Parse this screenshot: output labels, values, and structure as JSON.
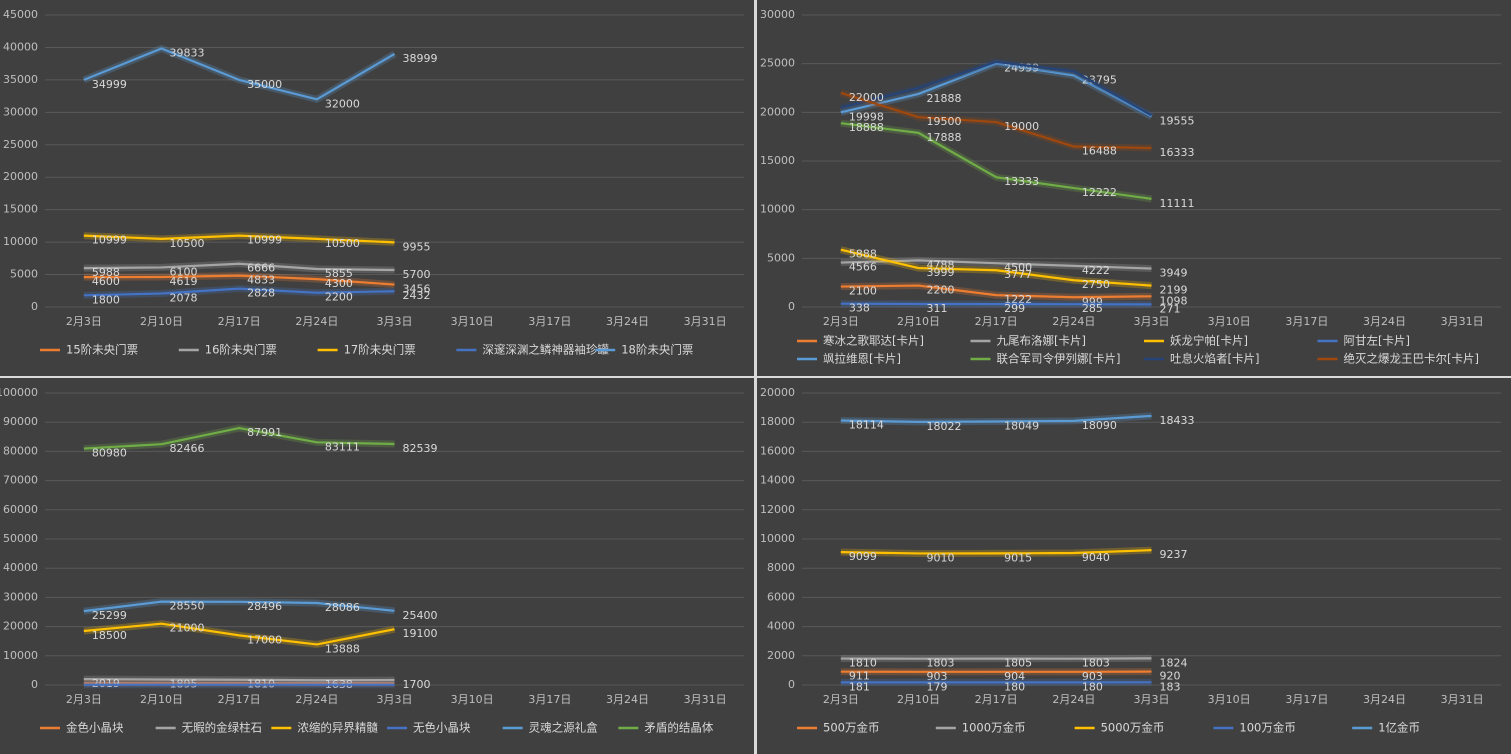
{
  "chart_data": [
    {
      "type": "line",
      "categories": [
        "2月3日",
        "2月10日",
        "2月17日",
        "2月24日",
        "3月3日",
        "3月10日",
        "3月17日",
        "3月24日",
        "3月31日"
      ],
      "ylim": [
        0,
        45000
      ],
      "yticks": [
        0,
        5000,
        10000,
        15000,
        20000,
        25000,
        30000,
        35000,
        40000,
        45000
      ],
      "grid": true,
      "legend": "bottom",
      "series": [
        {
          "name": "15阶未央门票",
          "color": "#ed7d31",
          "labels": true,
          "values": [
            4600,
            4619,
            4833,
            4300,
            3456,
            null,
            null,
            null,
            null
          ]
        },
        {
          "name": "16阶未央门票",
          "color": "#a5a5a5",
          "labels": true,
          "values": [
            5988,
            6100,
            6666,
            5855,
            5700,
            null,
            null,
            null,
            null
          ]
        },
        {
          "name": "17阶未央门票",
          "color": "#ffc000",
          "labels": true,
          "values": [
            10999,
            10500,
            10999,
            10500,
            9955,
            null,
            null,
            null,
            null
          ]
        },
        {
          "name": "深邃深渊之鳞神器袖珍罐",
          "color": "#4472c4",
          "labels": true,
          "values": [
            1800,
            2078,
            2828,
            2200,
            2432,
            null,
            null,
            null,
            null
          ]
        },
        {
          "name": "18阶未央门票",
          "color": "#5b9bd5",
          "labels": true,
          "values": [
            34999,
            39833,
            35000,
            32000,
            38999,
            null,
            null,
            null,
            null
          ]
        }
      ]
    },
    {
      "type": "line",
      "categories": [
        "2月3日",
        "2月10日",
        "2月17日",
        "2月24日",
        "3月3日",
        "3月10日",
        "3月17日",
        "3月24日",
        "3月31日"
      ],
      "ylim": [
        0,
        30000
      ],
      "yticks": [
        0,
        5000,
        10000,
        15000,
        20000,
        25000,
        30000
      ],
      "grid": true,
      "legend": "bottom",
      "series": [
        {
          "name": "寒冰之歌耶达[卡片]",
          "color": "#ed7d31",
          "labels": true,
          "values": [
            2100,
            2200,
            1222,
            999,
            1098,
            null,
            null,
            null,
            null
          ]
        },
        {
          "name": "九尾布洛娜[卡片]",
          "color": "#a5a5a5",
          "labels": true,
          "values": [
            4566,
            4788,
            4500,
            4222,
            3949,
            null,
            null,
            null,
            null
          ]
        },
        {
          "name": "妖龙宁帕[卡片]",
          "color": "#ffc000",
          "labels": true,
          "values": [
            5888,
            3999,
            3777,
            2750,
            2199,
            null,
            null,
            null,
            null
          ]
        },
        {
          "name": "阿甘左[卡片]",
          "color": "#4472c4",
          "labels": true,
          "values": [
            338,
            311,
            299,
            285,
            271,
            null,
            null,
            null,
            null
          ]
        },
        {
          "name": "飒拉维恩[卡片]",
          "color": "#5b9bd5",
          "labels": true,
          "values": [
            19998,
            21888,
            24999,
            23795,
            19555,
            null,
            null,
            null,
            null
          ]
        },
        {
          "name": "联合军司令伊列娜[卡片]",
          "color": "#70ad47",
          "labels": true,
          "values": [
            18888,
            17888,
            13333,
            12222,
            11111,
            null,
            null,
            null,
            null
          ]
        },
        {
          "name": "吐息火焰者[卡片]",
          "color": "#264478",
          "labels": false,
          "values": [
            20500,
            22500,
            25200,
            24200,
            19700,
            null,
            null,
            null,
            null
          ]
        },
        {
          "name": "绝灭之爆龙王巴卡尔[卡片]",
          "color": "#9e480e",
          "labels": true,
          "values": [
            22000,
            19500,
            19000,
            16488,
            16333,
            null,
            null,
            null,
            null
          ]
        }
      ]
    },
    {
      "type": "line",
      "categories": [
        "2月3日",
        "2月10日",
        "2月17日",
        "2月24日",
        "3月3日",
        "3月10日",
        "3月17日",
        "3月24日",
        "3月31日"
      ],
      "ylim": [
        0,
        100000
      ],
      "yticks": [
        0,
        10000,
        20000,
        30000,
        40000,
        50000,
        60000,
        70000,
        80000,
        90000,
        100000
      ],
      "grid": true,
      "legend": "bottom",
      "series": [
        {
          "name": "金色小晶块",
          "color": "#ed7d31",
          "labels": false,
          "values": [
            616,
            626,
            600,
            618,
            600,
            null,
            null,
            null,
            null
          ]
        },
        {
          "name": "无暇的金绿柱石",
          "color": "#a5a5a5",
          "labels": true,
          "values": [
            2019,
            1895,
            1810,
            1638,
            1700,
            null,
            null,
            null,
            null
          ]
        },
        {
          "name": "浓缩的异界精髓",
          "color": "#ffc000",
          "labels": true,
          "values": [
            18500,
            21000,
            17000,
            13888,
            19100,
            null,
            null,
            null,
            null
          ]
        },
        {
          "name": "无色小晶块",
          "color": "#4472c4",
          "labels": false,
          "values": [
            100,
            105,
            102,
            103,
            100,
            null,
            null,
            null,
            null
          ]
        },
        {
          "name": "灵魂之源礼盒",
          "color": "#5b9bd5",
          "labels": true,
          "values": [
            25299,
            28550,
            28496,
            28086,
            25400,
            null,
            null,
            null,
            null
          ]
        },
        {
          "name": "矛盾的结晶体",
          "color": "#70ad47",
          "labels": true,
          "values": [
            80980,
            82466,
            87991,
            83111,
            82539,
            null,
            null,
            null,
            null
          ]
        }
      ]
    },
    {
      "type": "line",
      "categories": [
        "2月3日",
        "2月10日",
        "2月17日",
        "2月24日",
        "3月3日",
        "3月10日",
        "3月17日",
        "3月24日",
        "3月31日"
      ],
      "ylim": [
        0,
        20000
      ],
      "yticks": [
        0,
        2000,
        4000,
        6000,
        8000,
        10000,
        12000,
        14000,
        16000,
        18000,
        20000
      ],
      "grid": true,
      "legend": "bottom",
      "series": [
        {
          "name": "500万金币",
          "color": "#ed7d31",
          "labels": true,
          "values": [
            911,
            903,
            904,
            903,
            920,
            null,
            null,
            null,
            null
          ]
        },
        {
          "name": "1000万金币",
          "color": "#a5a5a5",
          "labels": true,
          "values": [
            1810,
            1803,
            1805,
            1803,
            1824,
            null,
            null,
            null,
            null
          ]
        },
        {
          "name": "5000万金币",
          "color": "#ffc000",
          "labels": true,
          "values": [
            9099,
            9010,
            9015,
            9040,
            9237,
            null,
            null,
            null,
            null
          ]
        },
        {
          "name": "100万金币",
          "color": "#4472c4",
          "labels": true,
          "values": [
            181,
            179,
            180,
            180,
            183,
            null,
            null,
            null,
            null
          ]
        },
        {
          "name": "1亿金币",
          "color": "#5b9bd5",
          "labels": true,
          "values": [
            18114,
            18022,
            18049,
            18090,
            18433,
            null,
            null,
            null,
            null
          ]
        }
      ]
    }
  ]
}
